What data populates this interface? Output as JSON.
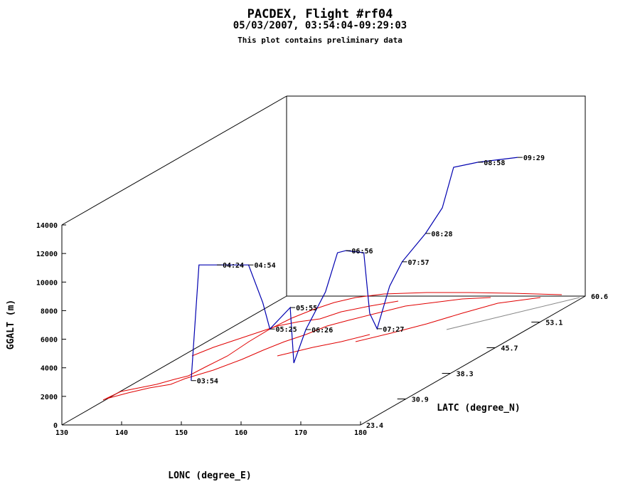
{
  "chart_data": {
    "type": "line3d",
    "title": "PACDEX, Flight #rf04",
    "subtitle": "05/03/2007, 03:54:04-09:29:03",
    "note": "This plot contains preliminary data",
    "x_label": "LONC (degree_E)",
    "y_label": "LATC (degree_N)",
    "z_label": "GGALT (m)",
    "xlim": [
      130,
      180
    ],
    "xticks": [
      130,
      140,
      150,
      160,
      170,
      180
    ],
    "ylim": [
      23.4,
      60.6
    ],
    "yticks": [
      23.4,
      30.9,
      38.3,
      45.7,
      53.1,
      60.6
    ],
    "zlim": [
      0,
      14000
    ],
    "zticks": [
      0,
      2000,
      4000,
      6000,
      8000,
      10000,
      12000,
      14000
    ],
    "color": "#0000b0",
    "x": [
      138.7,
      139.6,
      142.6,
      147.9,
      150.9,
      153.5,
      156.9,
      157.0,
      157.6,
      162.4,
      163.4,
      164.2,
      167.8,
      169.8,
      167.2,
      169.4,
      172.7,
      174.6,
      176.2,
      170.4,
      175.1,
      179.9
    ],
    "y": [
      36.2,
      36.6,
      36.6,
      36.6,
      36.0,
      34.6,
      34.6,
      35.1,
      36.5,
      35.0,
      36.0,
      36.6,
      36.0,
      35.0,
      38.8,
      38.7,
      37.5,
      39.5,
      40.7,
      48.3,
      47.7,
      49.5
    ],
    "z": [
      0,
      8000,
      8000,
      8000,
      5500,
      4000,
      5500,
      1500,
      3500,
      6500,
      9000,
      9000,
      9000,
      5000,
      3000,
      6000,
      8000,
      9500,
      11000,
      12000,
      12500,
      12400
    ],
    "point_labels": [
      "03:54",
      null,
      "04:24",
      "04:54",
      null,
      "05:25",
      "05:55",
      null,
      "06:26",
      null,
      null,
      "06:56",
      null,
      null,
      "07:27",
      null,
      "07:57",
      "08:28",
      null,
      null,
      "08:58",
      "09:29"
    ]
  }
}
